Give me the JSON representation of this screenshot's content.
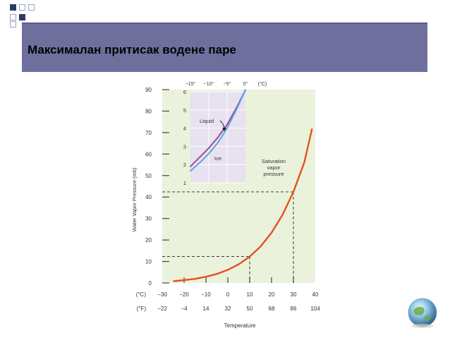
{
  "slide": {
    "title": "Максималан притисак водене паре"
  },
  "colors": {
    "title_bar": "#6f6f9d",
    "plot_background": "#eaf2dc",
    "inset_background": "#e8e1ef",
    "saturation_curve": "#e2521d",
    "liquid_curve": "#a04a9a",
    "ice_curve": "#5aa6e0",
    "deco_squares": "#2c3a6b"
  },
  "chart_data": [
    {
      "type": "line",
      "title": "",
      "xlabel": "Temperature",
      "ylabel": "Water Vapor Pressure (mb)",
      "xlim": [
        -30,
        40
      ],
      "ylim": [
        0,
        90
      ],
      "x_ticks_celsius": [
        "−30",
        "−20",
        "−10",
        "0",
        "10",
        "20",
        "30",
        "40"
      ],
      "x_ticks_fahrenheit": [
        "−22",
        "−4",
        "14",
        "32",
        "50",
        "68",
        "86",
        "104"
      ],
      "x_unit_celsius": "(°C)",
      "x_unit_fahrenheit": "(°F)",
      "y_ticks": [
        "0",
        "10",
        "20",
        "30",
        "40",
        "50",
        "60",
        "70",
        "80",
        "90"
      ],
      "grid": true,
      "annotation": [
        "Saturation",
        "vapor",
        "pressure"
      ],
      "reference_lines": [
        {
          "x": 10,
          "y": 12.3
        },
        {
          "x": 30,
          "y": 42.4
        }
      ],
      "series": [
        {
          "x": [
            -25,
            -20,
            -15,
            -10,
            -5,
            0,
            5,
            10,
            15,
            20,
            25,
            30,
            35,
            38.5
          ],
          "y": [
            0.8,
            1.3,
            1.9,
            2.9,
            4.2,
            6.1,
            8.7,
            12.3,
            17.0,
            23.4,
            31.7,
            42.4,
            56.2,
            71.8
          ]
        }
      ]
    },
    {
      "type": "line",
      "title": "",
      "xlabel": "",
      "ylabel": "",
      "xlim": [
        -15,
        0
      ],
      "ylim": [
        1,
        6
      ],
      "x_ticks": [
        "−15°",
        "−10°",
        "−5°",
        "0°"
      ],
      "x_unit": "(°C)",
      "y_ticks": [
        "1",
        "2",
        "3",
        "4",
        "5",
        "6"
      ],
      "grid": true,
      "series": [
        {
          "name": "Liquid",
          "x": [
            -15,
            -12.5,
            -10,
            -7.5,
            -5,
            -2.5,
            0
          ],
          "y": [
            1.9,
            2.4,
            2.9,
            3.5,
            4.2,
            5.1,
            6.1
          ]
        },
        {
          "name": "Ice",
          "x": [
            -15,
            -12.5,
            -10,
            -7.5,
            -5,
            -2.5,
            0
          ],
          "y": [
            1.65,
            2.1,
            2.6,
            3.2,
            4.0,
            5.0,
            6.1
          ]
        }
      ]
    }
  ]
}
